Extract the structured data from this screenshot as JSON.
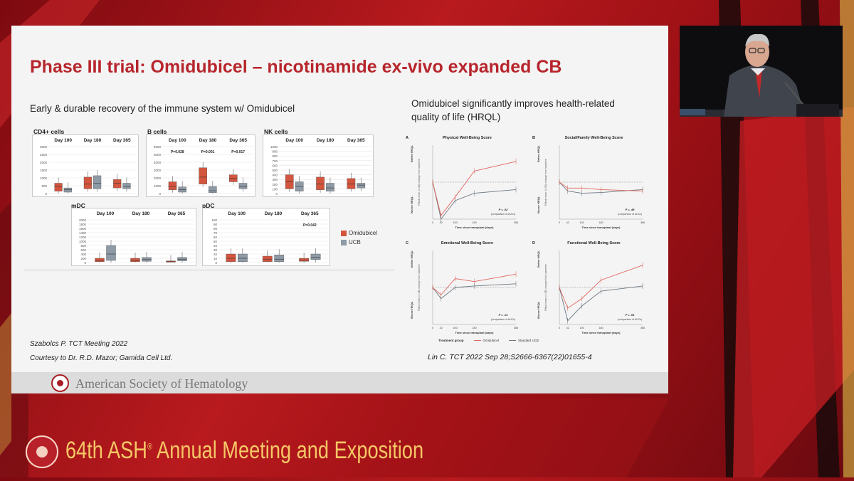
{
  "slide": {
    "title": "Phase III trial: Omidubicel – nicotinamide ex-vivo expanded CB",
    "left_subtitle": "Early & durable recovery of the immune system w/ Omidubicel",
    "right_subtitle_line1": "Omidubicel significantly improves health-related",
    "right_subtitle_line2": "quality of life (HRQL)",
    "ref_left_1": "Szabolcs P. TCT Meeting 2022",
    "ref_left_2": "Courtesy to Dr. R.D. Mazor; Gamida Cell Ltd.",
    "ref_right": "Lin C.  TCT 2022 Sep 28;S2666-6367(22)01655-4",
    "footer_org": "American Society of Hematology"
  },
  "colors": {
    "omidubicel": "#d4553e",
    "ucb": "#8e9aa6",
    "title_red": "#b7262d"
  },
  "box_charts": [
    {
      "label": "CD4+ cells",
      "days": [
        "Day 100",
        "Day 180",
        "Day 365"
      ],
      "yticks": [
        "3000",
        "2500",
        "2000",
        "1500",
        "1000",
        "500",
        "0"
      ],
      "pvals": [
        "",
        "",
        ""
      ],
      "boxes": [
        [
          0.05,
          0.15,
          0.22
        ],
        [
          0.03,
          0.08,
          0.12
        ],
        [
          0.1,
          0.2,
          0.35
        ],
        [
          0.1,
          0.22,
          0.38
        ],
        [
          0.12,
          0.22,
          0.3
        ],
        [
          0.1,
          0.15,
          0.22
        ]
      ]
    },
    {
      "label": "B cells",
      "days": [
        "Day 100",
        "Day 180",
        "Day 365"
      ],
      "yticks": [
        "6000",
        "5000",
        "4000",
        "3000",
        "2000",
        "1000",
        "0"
      ],
      "pvals": [
        "P=0.028",
        "P=0.001",
        "P=0.017"
      ],
      "boxes": [
        [
          0.08,
          0.15,
          0.25
        ],
        [
          0.03,
          0.08,
          0.14
        ],
        [
          0.2,
          0.35,
          0.55
        ],
        [
          0.02,
          0.06,
          0.15
        ],
        [
          0.25,
          0.32,
          0.4
        ],
        [
          0.1,
          0.15,
          0.22
        ]
      ]
    },
    {
      "label": "NK cells",
      "days": [
        "Day 100",
        "Day 180",
        "Day 365"
      ],
      "yticks": [
        "1000",
        "900",
        "800",
        "700",
        "600",
        "500",
        "400",
        "300",
        "200",
        "100",
        "0"
      ],
      "pvals": [
        "",
        "",
        ""
      ],
      "boxes": [
        [
          0.1,
          0.25,
          0.4
        ],
        [
          0.05,
          0.15,
          0.25
        ],
        [
          0.08,
          0.2,
          0.35
        ],
        [
          0.05,
          0.12,
          0.22
        ],
        [
          0.1,
          0.2,
          0.32
        ],
        [
          0.12,
          0.18,
          0.22
        ]
      ]
    },
    {
      "label": "mDC",
      "days": [
        "Day 100",
        "Day 180",
        "Day 365"
      ],
      "yticks": [
        "2000",
        "1800",
        "1600",
        "1400",
        "1200",
        "1000",
        "800",
        "600",
        "400",
        "200",
        "0"
      ],
      "pvals": [
        "",
        "",
        ""
      ],
      "boxes": [
        [
          0.02,
          0.05,
          0.1
        ],
        [
          0.05,
          0.2,
          0.4
        ],
        [
          0.02,
          0.05,
          0.1
        ],
        [
          0.03,
          0.07,
          0.12
        ],
        [
          0.01,
          0.02,
          0.04
        ],
        [
          0.04,
          0.08,
          0.12
        ]
      ]
    },
    {
      "label": "pDC",
      "days": [
        "Day 100",
        "Day 180",
        "Day 365"
      ],
      "yticks": [
        "100",
        "90",
        "80",
        "70",
        "60",
        "50",
        "40",
        "30",
        "20",
        "10",
        "0"
      ],
      "pvals": [
        "",
        "",
        "P=0.042"
      ],
      "boxes": [
        [
          0.02,
          0.1,
          0.2
        ],
        [
          0.02,
          0.1,
          0.2
        ],
        [
          0.02,
          0.08,
          0.15
        ],
        [
          0.02,
          0.08,
          0.18
        ],
        [
          0.03,
          0.06,
          0.1
        ],
        [
          0.07,
          0.12,
          0.2
        ]
      ]
    }
  ],
  "legend": {
    "omidubicel": "Omidubicel",
    "ucb": "UCB"
  },
  "hrql_panels": [
    {
      "letter": "A",
      "title": "Physical Well-Being Score",
      "pvalue": "P = .02",
      "omid": [
        0.5,
        0.05,
        0.3,
        0.65,
        0.78
      ],
      "ucb": [
        0.5,
        0.0,
        0.25,
        0.35,
        0.4
      ]
    },
    {
      "letter": "B",
      "title": "Social/Family Well-Being Score",
      "pvalue": "P = .49",
      "omid": [
        0.5,
        0.42,
        0.42,
        0.4,
        0.38
      ],
      "ucb": [
        0.5,
        0.38,
        0.35,
        0.36,
        0.4
      ]
    },
    {
      "letter": "C",
      "title": "Emotional Well-Being Score",
      "pvalue": "P = .13",
      "omid": [
        0.5,
        0.4,
        0.62,
        0.58,
        0.68
      ],
      "ucb": [
        0.5,
        0.35,
        0.5,
        0.52,
        0.55
      ]
    },
    {
      "letter": "D",
      "title": "Functional Well-Being Score",
      "pvalue": "P = .04",
      "omid": [
        0.5,
        0.22,
        0.35,
        0.6,
        0.8
      ],
      "ucb": [
        0.5,
        0.05,
        0.25,
        0.45,
        0.52
      ]
    }
  ],
  "hrql_common": {
    "xlabel": "Time since transplant (days)",
    "xticks": [
      "0",
      "42",
      "100",
      "180",
      "365"
    ],
    "better": "Better HRQL",
    "worse": "Worse HRQL",
    "ylabel": "Fitted mean (± SE) change from baseline",
    "comparison": "(comparison of AUCs)",
    "legend_title": "Treatment group",
    "legend_omid": "Omidubicel",
    "legend_ucb": "Standard UCB"
  },
  "event": {
    "title": "64th ASH",
    "reg": "®",
    "title_rest": " Annual Meeting and Exposition"
  }
}
